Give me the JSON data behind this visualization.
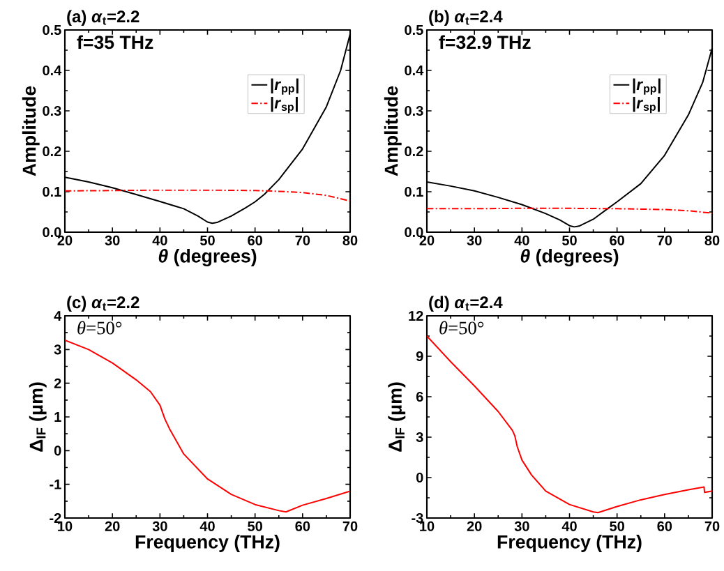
{
  "chart_data": [
    {
      "type": "line",
      "title": "(a) *α*$_{t}$=2.2",
      "xlabel": "*θ* (degrees)",
      "ylabel": "Amplitude",
      "annotations": [
        "f=35 THz"
      ],
      "legend": "top right",
      "xlim": [
        20,
        80
      ],
      "ylim": [
        0,
        0.5
      ],
      "xticks": [
        20,
        30,
        40,
        50,
        60,
        70,
        80
      ],
      "yticks": [
        {
          "value": 0,
          "label": "0.0"
        },
        0.1,
        0.2,
        0.3,
        0.4,
        0.5
      ],
      "series": [
        {
          "name": "|*r*$_{pp}$|",
          "color": "#000000",
          "line_style": "solid",
          "x": [
            20,
            25,
            30,
            35,
            40,
            45,
            48,
            50,
            51,
            52,
            55,
            58,
            60,
            62,
            65,
            70,
            75,
            78,
            80
          ],
          "values": [
            0.136,
            0.124,
            0.11,
            0.093,
            0.076,
            0.058,
            0.04,
            0.025,
            0.022,
            0.024,
            0.04,
            0.06,
            0.075,
            0.094,
            0.13,
            0.206,
            0.31,
            0.4,
            0.49
          ]
        },
        {
          "name": "|*r*$_{sp}$|",
          "color": "#ff0000",
          "line_style": "dashdot",
          "x": [
            20,
            30,
            40,
            50,
            60,
            65,
            70,
            75,
            80
          ],
          "values": [
            0.102,
            0.103,
            0.104,
            0.104,
            0.103,
            0.101,
            0.098,
            0.091,
            0.077
          ]
        }
      ]
    },
    {
      "type": "line",
      "title": "(b) *α*$_{t}$=2.4",
      "xlabel": "*θ* (degrees)",
      "ylabel": "Amplitude",
      "annotations": [
        "f=32.9 THz"
      ],
      "legend": "top right",
      "xlim": [
        20,
        80
      ],
      "ylim": [
        0,
        0.5
      ],
      "xticks": [
        20,
        30,
        40,
        50,
        60,
        70,
        80
      ],
      "yticks": [
        {
          "value": 0,
          "label": "0.0"
        },
        0.1,
        0.2,
        0.3,
        0.4,
        0.5
      ],
      "series": [
        {
          "name": "|*r*$_{pp}$|",
          "color": "#000000",
          "line_style": "solid",
          "x": [
            20,
            25,
            30,
            35,
            40,
            45,
            48,
            50,
            51,
            52,
            55,
            58,
            60,
            65,
            70,
            75,
            78,
            80
          ],
          "values": [
            0.124,
            0.114,
            0.102,
            0.086,
            0.068,
            0.046,
            0.03,
            0.016,
            0.013,
            0.015,
            0.032,
            0.058,
            0.075,
            0.12,
            0.19,
            0.29,
            0.37,
            0.455
          ]
        },
        {
          "name": "|*r*$_{sp}$|",
          "color": "#ff0000",
          "line_style": "dashdot",
          "x": [
            20,
            30,
            40,
            50,
            60,
            70,
            75,
            80
          ],
          "values": [
            0.058,
            0.058,
            0.059,
            0.059,
            0.058,
            0.056,
            0.053,
            0.047
          ]
        }
      ]
    },
    {
      "type": "line",
      "title": "(c) *α*$_{t}$=2.2",
      "xlabel": "Frequency (THz)",
      "ylabel": "Δ$_{IF}$ (μm)",
      "annotations": [
        "*θ*=50°"
      ],
      "xlim": [
        10,
        70
      ],
      "ylim": [
        -2,
        4
      ],
      "xticks": [
        10,
        20,
        30,
        40,
        50,
        60,
        70
      ],
      "yticks": [
        -2,
        -1,
        0,
        1,
        2,
        3,
        4
      ],
      "series": [
        {
          "color": "#ff0000",
          "line_style": "solid",
          "x": [
            10,
            15,
            20,
            25,
            28,
            30,
            31,
            32,
            35,
            40,
            45,
            50,
            55,
            56.5,
            60,
            65,
            70
          ],
          "values": [
            3.28,
            3.0,
            2.6,
            2.1,
            1.75,
            1.35,
            0.95,
            0.65,
            -0.1,
            -0.84,
            -1.3,
            -1.6,
            -1.78,
            -1.82,
            -1.62,
            -1.42,
            -1.2
          ]
        }
      ]
    },
    {
      "type": "line",
      "title": "(d) *α*$_{t}$=2.4",
      "xlabel": "Frequency (THz)",
      "ylabel": "Δ$_{IF}$ (μm)",
      "annotations": [
        "*θ*=50°"
      ],
      "xlim": [
        10,
        70
      ],
      "ylim": [
        -3,
        12
      ],
      "xticks": [
        10,
        20,
        30,
        40,
        50,
        60,
        70
      ],
      "yticks": [
        -3,
        0,
        3,
        6,
        9,
        12
      ],
      "series": [
        {
          "color": "#ff0000",
          "line_style": "solid",
          "x": [
            10,
            15,
            20,
            25,
            28,
            28.5,
            29,
            30,
            32,
            35,
            40,
            45,
            46,
            50,
            55,
            60,
            65,
            68.3,
            68.4,
            70
          ],
          "values": [
            10.5,
            8.6,
            6.8,
            4.9,
            3.5,
            3.1,
            2.3,
            1.3,
            0.2,
            -1.0,
            -2.0,
            -2.55,
            -2.6,
            -2.15,
            -1.65,
            -1.25,
            -0.9,
            -0.7,
            -1.1,
            -1.0
          ]
        }
      ]
    }
  ]
}
